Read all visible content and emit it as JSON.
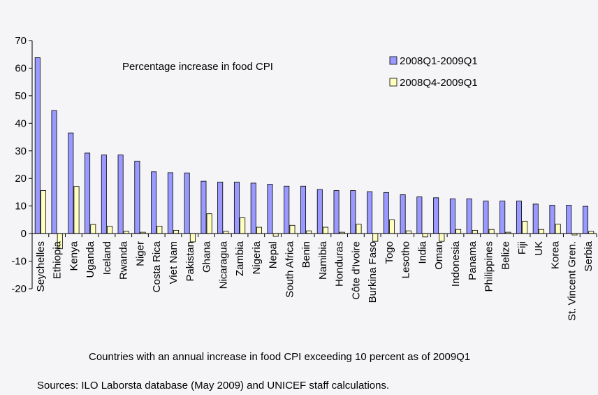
{
  "chart_data": {
    "type": "bar",
    "title": "Percentage increase in food CPI",
    "xlabel": "Countries with an annual increase in food CPI exceeding 10 percent as of 2009Q1",
    "ylabel": "",
    "ylim": [
      -20,
      70
    ],
    "yticks": [
      -20,
      -10,
      0,
      10,
      20,
      30,
      40,
      50,
      60,
      70
    ],
    "grid": false,
    "legend_position": "top-right",
    "categories": [
      "Seychelles",
      "Ethiopia",
      "Kenya",
      "Uganda",
      "Iceland",
      "Rwanda",
      "Niger",
      "Costa Rica",
      "Viet Nam",
      "Pakistan",
      "Ghana",
      "Nicaragua",
      "Zambia",
      "Nigeria",
      "Nepal",
      "South Africa",
      "Benin",
      "Namibia",
      "Honduras",
      "Côte d'Ivoire",
      "Burkina Faso",
      "Togo",
      "Lesotho",
      "India",
      "Oman",
      "Indonesia",
      "Panama",
      "Philippines",
      "Belize",
      "Fiji",
      "UK",
      "Korea",
      "St. Vincent Gren.",
      "Serbia"
    ],
    "series": [
      {
        "name": "2008Q1-2009Q1",
        "color": "#9999ff",
        "values": [
          63.8,
          44.6,
          36.5,
          29.2,
          28.5,
          28.5,
          26.3,
          22.4,
          22.1,
          22.0,
          19.0,
          18.7,
          18.7,
          18.3,
          17.9,
          17.2,
          17.2,
          16.0,
          15.6,
          15.6,
          15.2,
          14.9,
          14.1,
          13.3,
          13.0,
          12.6,
          12.6,
          11.8,
          11.8,
          11.8,
          10.7,
          10.3,
          10.3,
          9.9
        ]
      },
      {
        "name": "2008Q4-2009Q1",
        "color": "#ffffc0",
        "values": [
          15.6,
          -5.5,
          17.1,
          3.3,
          2.7,
          0.8,
          0.5,
          2.7,
          1.2,
          -3.0,
          7.2,
          0.8,
          5.7,
          2.3,
          -1.0,
          3.0,
          1.0,
          2.3,
          0.5,
          3.4,
          -2.8,
          5.0,
          1.0,
          -1.2,
          -2.8,
          1.5,
          1.2,
          1.5,
          0.5,
          4.5,
          1.5,
          3.4,
          -0.5,
          0.8
        ]
      }
    ]
  },
  "source": "Sources: ILO Laborsta database (May 2009) and UNICEF staff calculations."
}
